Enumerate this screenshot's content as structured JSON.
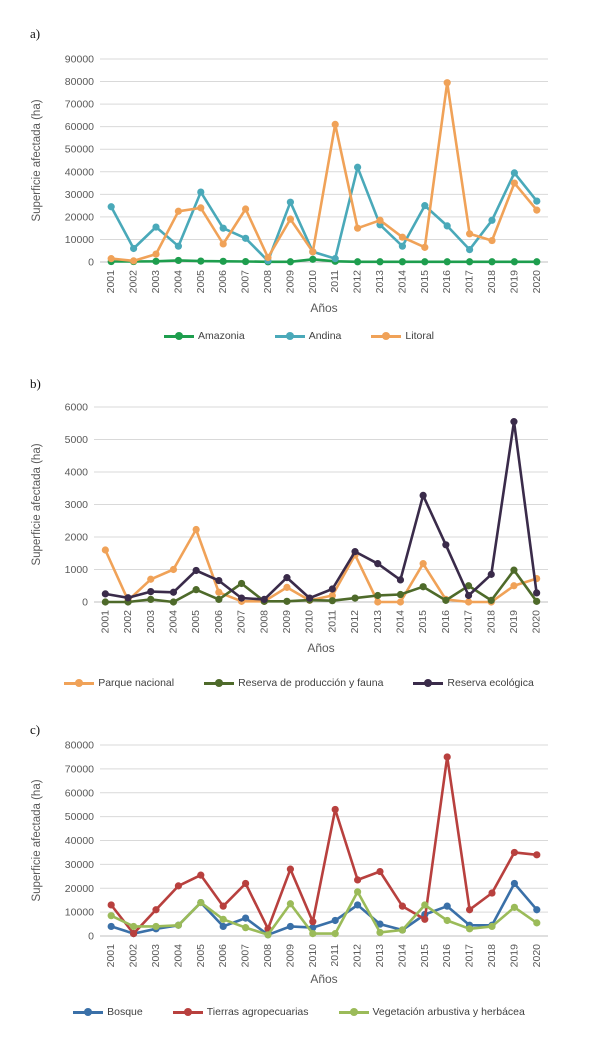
{
  "chart_data": [
    {
      "panel_label": "a)",
      "type": "line",
      "title": "",
      "xlabel": "Años",
      "ylabel": "Superficie afectada (ha)",
      "ylim": [
        0,
        90000
      ],
      "yticks": [
        0,
        10000,
        20000,
        30000,
        40000,
        50000,
        60000,
        70000,
        80000,
        90000
      ],
      "grid": true,
      "legend_position": "bottom",
      "categories": [
        "2001",
        "2002",
        "2003",
        "2004",
        "2005",
        "2006",
        "2007",
        "2008",
        "2009",
        "2010",
        "2011",
        "2012",
        "2013",
        "2014",
        "2015",
        "2016",
        "2017",
        "2018",
        "2019",
        "2020"
      ],
      "series": [
        {
          "name": "Amazonia",
          "color": "#1e9e4e",
          "values": [
            200,
            200,
            300,
            700,
            400,
            300,
            200,
            100,
            100,
            1200,
            300,
            100,
            100,
            100,
            100,
            100,
            100,
            100,
            100,
            100
          ]
        },
        {
          "name": "Andina",
          "color": "#4aa9b9",
          "values": [
            24500,
            6000,
            15500,
            7000,
            31000,
            15000,
            10500,
            500,
            26500,
            4500,
            1500,
            42000,
            16500,
            7000,
            25000,
            16000,
            5500,
            18500,
            39500,
            27000
          ]
        },
        {
          "name": "Litoral",
          "color": "#f0a258",
          "values": [
            1500,
            500,
            3500,
            22500,
            24000,
            8000,
            23500,
            2000,
            19000,
            4500,
            61000,
            15000,
            18500,
            11000,
            6500,
            79500,
            12500,
            9500,
            35000,
            23000
          ]
        }
      ]
    },
    {
      "panel_label": "b)",
      "type": "line",
      "title": "",
      "xlabel": "Años",
      "ylabel": "Superficie afectada (ha)",
      "ylim": [
        0,
        6000
      ],
      "yticks": [
        0,
        1000,
        2000,
        3000,
        4000,
        5000,
        6000
      ],
      "grid": true,
      "legend_position": "bottom",
      "categories": [
        "2001",
        "2002",
        "2003",
        "2004",
        "2005",
        "2006",
        "2007",
        "2008",
        "2009",
        "2010",
        "2011",
        "2012",
        "2013",
        "2014",
        "2015",
        "2016",
        "2017",
        "2018",
        "2019",
        "2020"
      ],
      "series": [
        {
          "name": "Parque nacional",
          "color": "#f0a258",
          "values": [
            1600,
            50,
            700,
            1000,
            2230,
            300,
            20,
            20,
            450,
            50,
            200,
            1450,
            0,
            0,
            1180,
            80,
            0,
            0,
            500,
            720
          ]
        },
        {
          "name": "Reserva de producción y fauna",
          "color": "#4e6a2a",
          "values": [
            0,
            0,
            80,
            0,
            380,
            80,
            570,
            20,
            20,
            60,
            40,
            120,
            200,
            230,
            470,
            50,
            500,
            50,
            980,
            20
          ]
        },
        {
          "name": "Reserva ecológica",
          "color": "#3a2b4a",
          "values": [
            250,
            130,
            320,
            300,
            970,
            660,
            120,
            80,
            750,
            120,
            400,
            1550,
            1180,
            680,
            3280,
            1760,
            200,
            850,
            5550,
            280
          ]
        }
      ]
    },
    {
      "panel_label": "c)",
      "type": "line",
      "title": "",
      "xlabel": "Años",
      "ylabel": "Superficie afectada (ha)",
      "ylim": [
        0,
        80000
      ],
      "yticks": [
        0,
        10000,
        20000,
        30000,
        40000,
        50000,
        60000,
        70000,
        80000
      ],
      "grid": true,
      "legend_position": "bottom",
      "categories": [
        "2001",
        "2002",
        "2003",
        "2004",
        "2005",
        "2006",
        "2007",
        "2008",
        "2009",
        "2010",
        "2011",
        "2012",
        "2013",
        "2014",
        "2015",
        "2016",
        "2017",
        "2018",
        "2019",
        "2020"
      ],
      "series": [
        {
          "name": "Bosque",
          "color": "#3a70a8",
          "values": [
            4000,
            1000,
            3000,
            4500,
            14000,
            4000,
            7500,
            500,
            4000,
            3500,
            6500,
            13000,
            5000,
            2500,
            9000,
            12500,
            4500,
            4500,
            22000,
            11000
          ]
        },
        {
          "name": "Tierras agropecuarias",
          "color": "#b8403e",
          "values": [
            13000,
            1000,
            11000,
            21000,
            25500,
            12500,
            22000,
            3000,
            28000,
            6000,
            53000,
            23500,
            27000,
            12500,
            7000,
            75000,
            11000,
            18000,
            35000,
            34000
          ]
        },
        {
          "name": "Vegetación arbustiva y herbácea",
          "color": "#9bbb59",
          "values": [
            8500,
            4000,
            4000,
            4500,
            14000,
            7000,
            3500,
            500,
            13500,
            1000,
            1000,
            18500,
            1500,
            2500,
            13000,
            6500,
            3000,
            4000,
            12000,
            5500
          ]
        }
      ]
    }
  ]
}
